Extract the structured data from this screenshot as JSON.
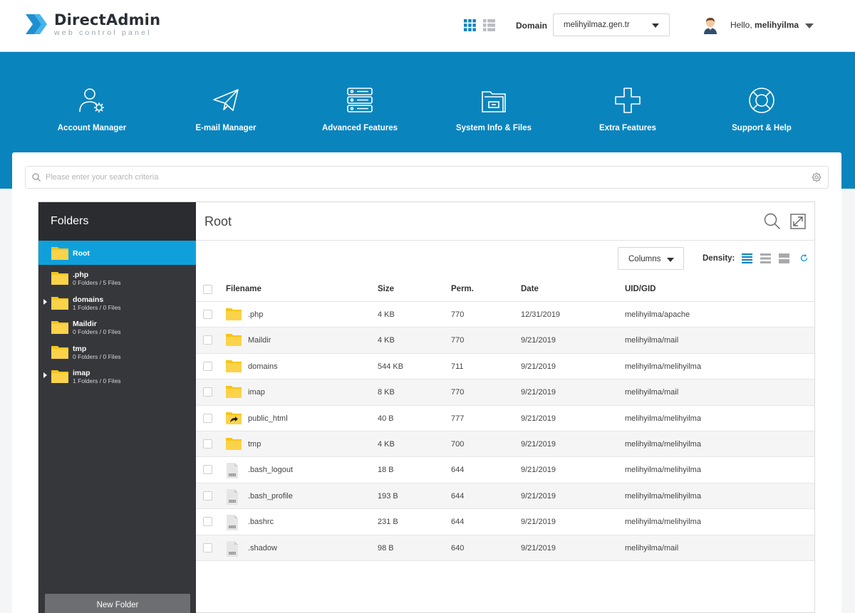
{
  "header": {
    "brand": "DirectAdmin",
    "tagline": "web control panel",
    "domain_label": "Domain",
    "domain_value": "melihyilmaz.gen.tr",
    "hello": "Hello,",
    "username": "melihyilma"
  },
  "nav": [
    {
      "label": "Account Manager",
      "icon": "account-manager-icon"
    },
    {
      "label": "E-mail Manager",
      "icon": "paper-plane-icon"
    },
    {
      "label": "Advanced Features",
      "icon": "server-icon"
    },
    {
      "label": "System Info & Files",
      "icon": "folder-drawer-icon"
    },
    {
      "label": "Extra Features",
      "icon": "plus-icon"
    },
    {
      "label": "Support & Help",
      "icon": "lifebuoy-icon"
    }
  ],
  "search": {
    "placeholder": "Please enter your search criteria"
  },
  "sidebar": {
    "title": "Folders",
    "folders": [
      {
        "name": "Root",
        "meta": "",
        "expandable": false,
        "active": true
      },
      {
        "name": ".php",
        "meta": "0 Folders / 5 Files",
        "expandable": false,
        "active": false
      },
      {
        "name": "domains",
        "meta": "1 Folders / 0 Files",
        "expandable": true,
        "active": false
      },
      {
        "name": "Maildir",
        "meta": "0 Folders / 0 Files",
        "expandable": false,
        "active": false
      },
      {
        "name": "tmp",
        "meta": "0 Folders / 0 Files",
        "expandable": false,
        "active": false
      },
      {
        "name": "imap",
        "meta": "1 Folders / 0 Files",
        "expandable": true,
        "active": false
      }
    ],
    "new_folder_label": "New Folder"
  },
  "main": {
    "title": "Root",
    "columns_label": "Columns",
    "density_label": "Density:",
    "headers": {
      "filename": "Filename",
      "size": "Size",
      "perm": "Perm.",
      "date": "Date",
      "uid": "UID/GID"
    },
    "rows": [
      {
        "name": ".php",
        "type": "folder",
        "size": "4 KB",
        "perm": "770",
        "date": "12/31/2019",
        "uid": "melihyilma/apache"
      },
      {
        "name": "Maildir",
        "type": "folder",
        "size": "4 KB",
        "perm": "770",
        "date": "9/21/2019",
        "uid": "melihyilma/mail"
      },
      {
        "name": "domains",
        "type": "folder",
        "size": "544 KB",
        "perm": "711",
        "date": "9/21/2019",
        "uid": "melihyilma/melihyilma"
      },
      {
        "name": "imap",
        "type": "folder",
        "size": "8 KB",
        "perm": "770",
        "date": "9/21/2019",
        "uid": "melihyilma/mail"
      },
      {
        "name": "public_html",
        "type": "link",
        "size": "40 B",
        "perm": "777",
        "date": "9/21/2019",
        "uid": "melihyilma/melihyilma"
      },
      {
        "name": "tmp",
        "type": "folder",
        "size": "4 KB",
        "perm": "700",
        "date": "9/21/2019",
        "uid": "melihyilma/melihyilma"
      },
      {
        "name": ".bash_logout",
        "type": "file",
        "size": "18 B",
        "perm": "644",
        "date": "9/21/2019",
        "uid": "melihyilma/melihyilma"
      },
      {
        "name": ".bash_profile",
        "type": "file",
        "size": "193 B",
        "perm": "644",
        "date": "9/21/2019",
        "uid": "melihyilma/melihyilma"
      },
      {
        "name": ".bashrc",
        "type": "file",
        "size": "231 B",
        "perm": "644",
        "date": "9/21/2019",
        "uid": "melihyilma/melihyilma"
      },
      {
        "name": ".shadow",
        "type": "file",
        "size": "98 B",
        "perm": "640",
        "date": "9/21/2019",
        "uid": "melihyilma/mail"
      }
    ]
  },
  "colors": {
    "accent": "#0a84bd",
    "active": "#0fa0dc",
    "sidebar": "#36373b",
    "folder": "#f5c518"
  }
}
